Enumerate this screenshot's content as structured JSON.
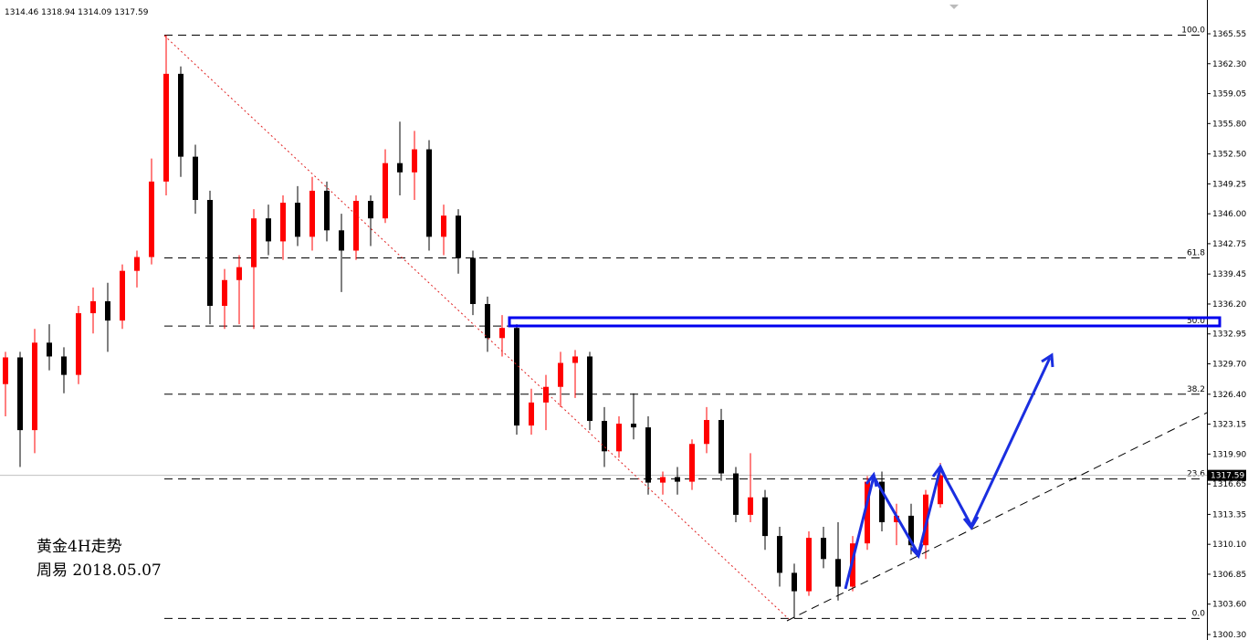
{
  "chart_data": {
    "type": "candlestick",
    "header": "1314.46 1318.94 1314.09 1317.59",
    "annotations": [
      "黄金4H走势",
      "周易 2018.05.07"
    ],
    "up_color": "#ff0000",
    "down_color": "#000000",
    "ylim": [
      1300.3,
      1365.55
    ],
    "yticks": [
      1365.55,
      {
        "value": 1362.3,
        "label": "1362.30"
      },
      1359.05,
      {
        "value": 1355.8,
        "label": "1355.80"
      },
      {
        "value": 1352.5,
        "label": "1352.50"
      },
      1349.25,
      {
        "value": 1346,
        "label": "1346.00"
      },
      1342.75,
      1339.45,
      {
        "value": 1336.2,
        "label": "1336.20"
      },
      1332.95,
      {
        "value": 1329.7,
        "label": "1329.70"
      },
      {
        "value": 1326.4,
        "label": "1326.40"
      },
      1323.15,
      {
        "value": 1319.9,
        "label": "1319.90"
      },
      1316.65,
      1313.35,
      {
        "value": 1310.1,
        "label": "1310.10"
      },
      1306.85,
      {
        "value": 1303.6,
        "label": "1303.60"
      },
      {
        "value": 1300.3,
        "label": "1300.30"
      }
    ],
    "last_price": 1317.59,
    "fibonacci": [
      {
        "label": "100.0",
        "price": 1365.4
      },
      {
        "label": "61.8",
        "price": 1341.2
      },
      {
        "label": "50.0",
        "price": 1333.8
      },
      {
        "label": "38.2",
        "price": 1326.4
      },
      {
        "label": "23.6",
        "price": 1317.2
      },
      {
        "label": "0.0",
        "price": 1302.05
      }
    ],
    "candles": {
      "open": [
        1327.5,
        1330.4,
        1322.5,
        1332,
        1330.5,
        1328.5,
        1335.2,
        1336.5,
        1334.4,
        1339.8,
        1341.3,
        1349.5,
        1361.2,
        1352.2,
        1347.5,
        1336,
        1338.8,
        1340.2,
        1345.5,
        1343,
        1347.2,
        1343.5,
        1348.5,
        1344.2,
        1342,
        1347.4,
        1345.5,
        1351.5,
        1350.5,
        1353,
        1343.5,
        1345.8,
        1341.2,
        1336.2,
        1332.5,
        1333.6,
        1323,
        1325.5,
        1327.2,
        1329.8,
        1330.5,
        1323.5,
        1320.2,
        1323.2,
        1322.8,
        1316.8,
        1317.4,
        1316.9,
        1321,
        1323.6,
        1317.8,
        1313.3,
        1315.2,
        1311,
        1307,
        1305,
        1310.8,
        1308.5,
        1305.5,
        1310.2,
        1316.9,
        1312.5,
        1313.2,
        1310,
        1314.46
      ],
      "high": [
        1331,
        1331,
        1333.5,
        1334,
        1331.5,
        1336,
        1338,
        1338.5,
        1340.5,
        1342,
        1352,
        1365.4,
        1362,
        1353.5,
        1348.5,
        1340,
        1341.5,
        1346.5,
        1347,
        1348,
        1349,
        1350,
        1349.5,
        1346,
        1348,
        1348,
        1353,
        1356,
        1355,
        1354,
        1347,
        1346.5,
        1342,
        1337,
        1335,
        1334,
        1327,
        1328.5,
        1331,
        1331.2,
        1331,
        1325,
        1324,
        1326.5,
        1324,
        1318,
        1318.5,
        1321.5,
        1325,
        1324.8,
        1318.5,
        1320,
        1316,
        1312,
        1308,
        1311.5,
        1312,
        1312.5,
        1311,
        1317.5,
        1318,
        1314.5,
        1314.5,
        1316,
        1318.94
      ],
      "low": [
        1324,
        1318.5,
        1320,
        1329,
        1326.5,
        1327.5,
        1333,
        1331,
        1333.5,
        1338,
        1340.5,
        1348,
        1350,
        1346,
        1334,
        1333.5,
        1334,
        1333.5,
        1341.5,
        1341,
        1342.5,
        1342,
        1343,
        1337.5,
        1341,
        1342.5,
        1345,
        1348,
        1347.5,
        1342,
        1341.5,
        1339.5,
        1335,
        1331,
        1330.5,
        1322,
        1322,
        1322.5,
        1325,
        1326,
        1322.5,
        1318.5,
        1319.5,
        1321.5,
        1315.5,
        1315.5,
        1315.5,
        1316,
        1320,
        1317,
        1312.5,
        1312.5,
        1309.5,
        1305.5,
        1302.05,
        1304.5,
        1307.5,
        1304,
        1305,
        1309.5,
        1311.5,
        1310,
        1309,
        1308.5,
        1314.09
      ],
      "close": [
        1330.4,
        1322.5,
        1332,
        1330.5,
        1328.5,
        1335.2,
        1336.5,
        1334.4,
        1339.8,
        1341.3,
        1349.5,
        1361.2,
        1352.2,
        1347.5,
        1336,
        1338.8,
        1340.2,
        1345.5,
        1343,
        1347.2,
        1343.5,
        1348.5,
        1344.2,
        1342,
        1347.4,
        1345.5,
        1351.5,
        1350.5,
        1353,
        1343.5,
        1345.8,
        1341.2,
        1336.2,
        1332.5,
        1333.6,
        1323,
        1325.5,
        1327.2,
        1329.8,
        1330.5,
        1323.5,
        1320.2,
        1323.2,
        1322.8,
        1316.8,
        1317.4,
        1316.9,
        1321,
        1323.6,
        1317.8,
        1313.3,
        1315.2,
        1311,
        1307,
        1305,
        1310.8,
        1308.5,
        1305.5,
        1310.2,
        1316.9,
        1312.5,
        1313.2,
        1310,
        1315.5,
        1317.59
      ]
    }
  }
}
